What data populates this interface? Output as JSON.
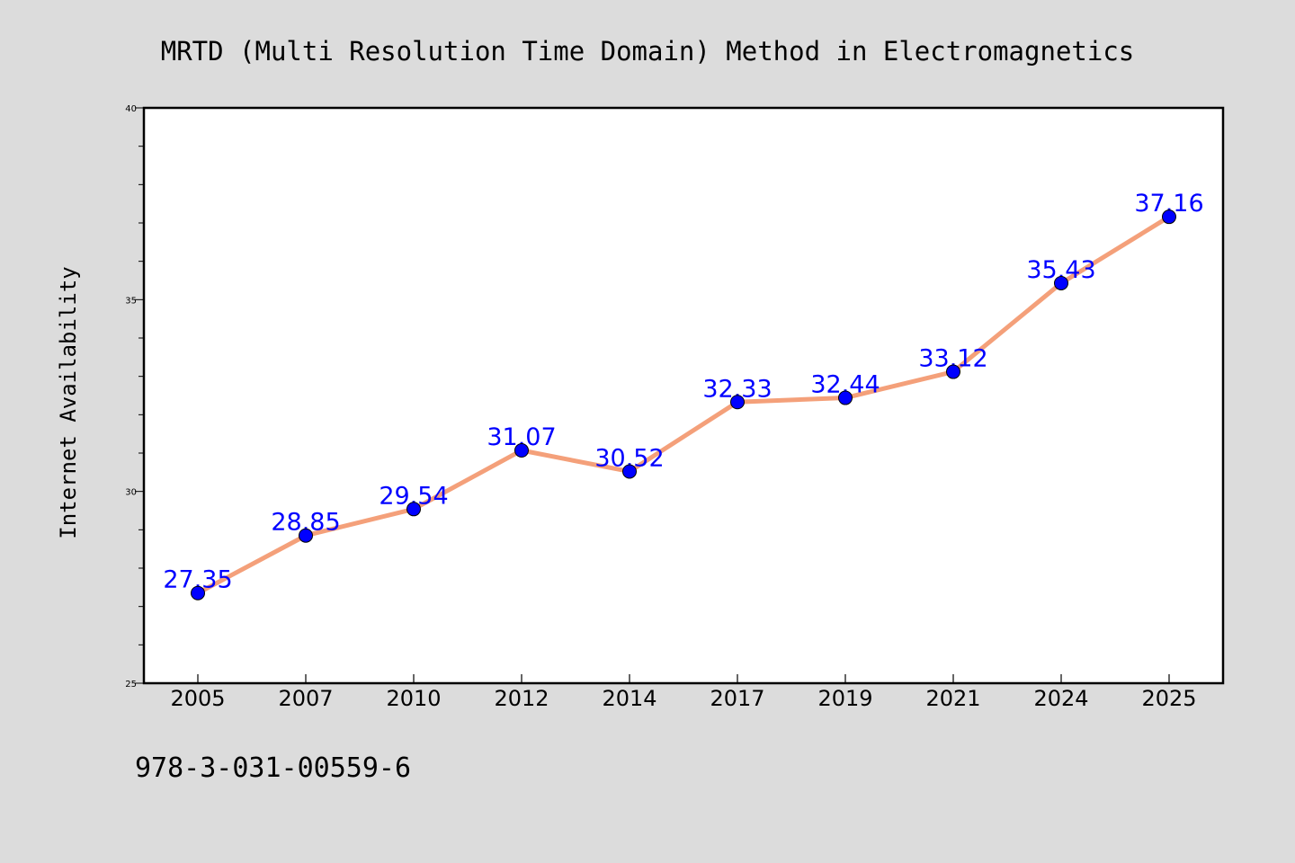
{
  "chart_data": {
    "type": "line",
    "title": "MRTD (Multi Resolution Time Domain) Method in Electromagnetics",
    "xlabel": "",
    "ylabel": "Internet Availability",
    "categories": [
      "2005",
      "2007",
      "2010",
      "2012",
      "2014",
      "2017",
      "2019",
      "2021",
      "2024",
      "2025"
    ],
    "series": [
      {
        "values": [
          27.35,
          28.85,
          29.54,
          31.07,
          30.52,
          32.33,
          32.44,
          33.12,
          35.43,
          37.16
        ]
      }
    ],
    "data_labels": [
      "27.35",
      "28.85",
      "29.54",
      "31.07",
      "30.52",
      "32.33",
      "32.44",
      "33.12",
      "35.43",
      "37.16"
    ],
    "ylim": [
      25,
      40
    ],
    "y_major_ticks": [
      "25",
      "30",
      "35",
      "40"
    ],
    "y_minor_step": 1,
    "grid": false,
    "legend": "none",
    "colors": {
      "line": "#f4a07a",
      "marker": "#0000ff",
      "data_label": "#0000ff",
      "background": "#dcdcdc",
      "plot_background": "#ffffff"
    }
  },
  "footer": {
    "text": "978-3-031-00559-6"
  }
}
